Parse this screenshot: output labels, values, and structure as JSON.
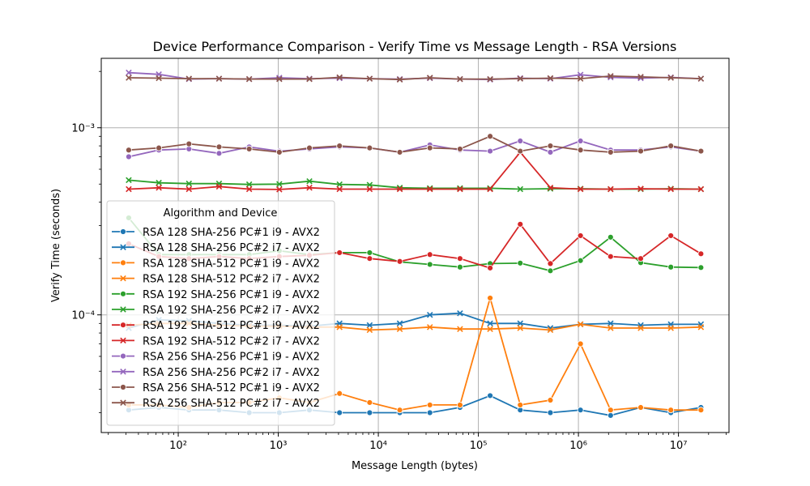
{
  "chart_data": {
    "type": "line",
    "title": "Device Performance Comparison - Verify Time vs Message Length - RSA Versions",
    "xlabel": "Message Length (bytes)",
    "ylabel": "Verify Time (seconds)",
    "xscale": "log",
    "yscale": "log",
    "xlim": [
      17,
      32000000
    ],
    "ylim": [
      2.35e-05,
      0.00235
    ],
    "grid": true,
    "legend_title": "Algorithm and Device",
    "legend_position": "center-left",
    "x": [
      32,
      64,
      128,
      256,
      512,
      1024,
      2048,
      4096,
      8192,
      16384,
      32768,
      65536,
      131072,
      262144,
      524288,
      1048576,
      2097152,
      4194304,
      8388608,
      16777216
    ],
    "series": [
      {
        "name": "RSA 128 SHA-256 PC#1 i9 - AVX2",
        "color": "#1f77b4",
        "marker": "circle",
        "values": [
          3.1e-05,
          3.2e-05,
          3.1e-05,
          3.1e-05,
          3e-05,
          3e-05,
          3.1e-05,
          3e-05,
          3e-05,
          3e-05,
          3e-05,
          3.2e-05,
          3.7e-05,
          3.1e-05,
          3e-05,
          3.1e-05,
          2.9e-05,
          3.2e-05,
          3e-05,
          3.2e-05
        ]
      },
      {
        "name": "RSA 128 SHA-256 PC#2 i7 - AVX2",
        "color": "#1f77b4",
        "marker": "x",
        "values": [
          8.5e-05,
          9.4e-05,
          9.3e-05,
          9e-05,
          8.8e-05,
          8.8e-05,
          8.7e-05,
          9e-05,
          8.8e-05,
          9e-05,
          0.0001,
          0.000102,
          9e-05,
          9e-05,
          8.5e-05,
          8.9e-05,
          9e-05,
          8.8e-05,
          8.9e-05,
          8.9e-05
        ]
      },
      {
        "name": "RSA 128 SHA-512 PC#1 i9 - AVX2",
        "color": "#ff7f0e",
        "marker": "circle",
        "values": [
          3.3e-05,
          3.3e-05,
          3.2e-05,
          3.4e-05,
          3.4e-05,
          3.6e-05,
          3.4e-05,
          3.8e-05,
          3.4e-05,
          3.1e-05,
          3.3e-05,
          3.3e-05,
          0.000123,
          3.3e-05,
          3.5e-05,
          7e-05,
          3.1e-05,
          3.2e-05,
          3.1e-05,
          3.1e-05
        ]
      },
      {
        "name": "RSA 128 SHA-512 PC#2 i7 - AVX2",
        "color": "#ff7f0e",
        "marker": "x",
        "values": [
          8.8e-05,
          9e-05,
          9e-05,
          8.8e-05,
          8.7e-05,
          8.7e-05,
          8.6e-05,
          8.6e-05,
          8.3e-05,
          8.4e-05,
          8.6e-05,
          8.4e-05,
          8.4e-05,
          8.5e-05,
          8.3e-05,
          8.9e-05,
          8.5e-05,
          8.5e-05,
          8.5e-05,
          8.6e-05
        ]
      },
      {
        "name": "RSA 192 SHA-256 PC#1 i9 - AVX2",
        "color": "#2ca02c",
        "marker": "circle",
        "values": [
          0.00033,
          0.00021,
          0.00021,
          0.00021,
          0.00021,
          0.00022,
          0.00021,
          0.000215,
          0.000215,
          0.000192,
          0.000186,
          0.00018,
          0.000188,
          0.000189,
          0.000172,
          0.000195,
          0.00026,
          0.00019,
          0.00018,
          0.000179
        ]
      },
      {
        "name": "RSA 192 SHA-256 PC#2 i7 - AVX2",
        "color": "#2ca02c",
        "marker": "x",
        "values": [
          0.000525,
          0.000508,
          0.000503,
          0.000503,
          0.000498,
          0.0005,
          0.000518,
          0.000498,
          0.000495,
          0.000478,
          0.000475,
          0.000475,
          0.000475,
          0.00047,
          0.000472,
          0.000472,
          0.00047,
          0.00047,
          0.000472,
          0.00047
        ]
      },
      {
        "name": "RSA 192 SHA-512 PC#1 i9 - AVX2",
        "color": "#d62728",
        "marker": "circle",
        "values": [
          0.00024,
          0.000205,
          0.0002,
          0.000205,
          0.0002,
          0.000205,
          0.000208,
          0.000215,
          0.0002,
          0.000193,
          0.00021,
          0.0002,
          0.000178,
          0.000305,
          0.000188,
          0.000265,
          0.000205,
          0.0002,
          0.000265,
          0.000212
        ]
      },
      {
        "name": "RSA 192 SHA-512 PC#2 i7 - AVX2",
        "color": "#d62728",
        "marker": "x",
        "values": [
          0.00047,
          0.000478,
          0.00047,
          0.000485,
          0.00047,
          0.000468,
          0.000478,
          0.00047,
          0.00047,
          0.00047,
          0.00047,
          0.00047,
          0.00047,
          0.00074,
          0.000478,
          0.00047,
          0.00047,
          0.000472,
          0.00047,
          0.00047
        ]
      },
      {
        "name": "RSA 256 SHA-256 PC#1 i9 - AVX2",
        "color": "#9467bd",
        "marker": "circle",
        "values": [
          0.0007,
          0.00076,
          0.00077,
          0.00073,
          0.00079,
          0.00075,
          0.00077,
          0.00079,
          0.00078,
          0.00074,
          0.00081,
          0.00076,
          0.00075,
          0.00085,
          0.00074,
          0.00085,
          0.00076,
          0.00076,
          0.00079,
          0.00075
        ]
      },
      {
        "name": "RSA 256 SHA-256 PC#2 i7 - AVX2",
        "color": "#9467bd",
        "marker": "x",
        "values": [
          0.00197,
          0.00193,
          0.00182,
          0.00183,
          0.00182,
          0.00185,
          0.00183,
          0.00184,
          0.00183,
          0.00182,
          0.00184,
          0.00182,
          0.00181,
          0.00184,
          0.00183,
          0.00192,
          0.00186,
          0.00184,
          0.00186,
          0.00183
        ]
      },
      {
        "name": "RSA 256 SHA-512 PC#1 i9 - AVX2",
        "color": "#8c564b",
        "marker": "circle",
        "values": [
          0.00076,
          0.00078,
          0.00082,
          0.00079,
          0.00077,
          0.00074,
          0.00078,
          0.0008,
          0.00078,
          0.00074,
          0.00078,
          0.00077,
          0.0009,
          0.00075,
          0.0008,
          0.00076,
          0.00074,
          0.00075,
          0.0008,
          0.00075
        ]
      },
      {
        "name": "RSA 256 SHA-512 PC#2 i7 - AVX2",
        "color": "#8c564b",
        "marker": "x",
        "values": [
          0.00185,
          0.00184,
          0.00183,
          0.00183,
          0.00182,
          0.00182,
          0.00182,
          0.00186,
          0.00183,
          0.00181,
          0.00185,
          0.00182,
          0.00182,
          0.00183,
          0.00184,
          0.00183,
          0.00189,
          0.00187,
          0.00185,
          0.00183
        ]
      }
    ]
  }
}
